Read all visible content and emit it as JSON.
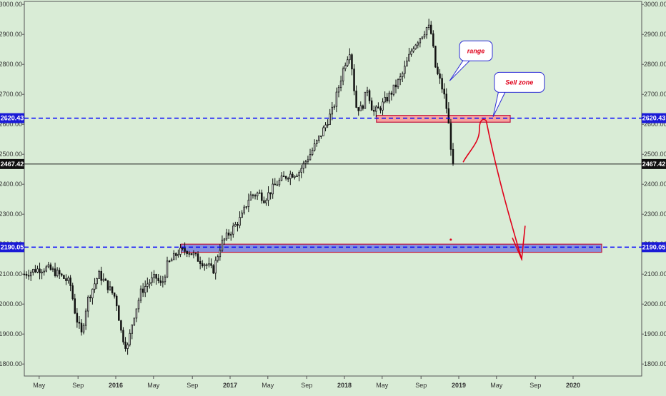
{
  "chart_data": {
    "type": "candlestick",
    "ylim": [
      1760,
      3010
    ],
    "xlim": [
      2015.2,
      2020.6
    ],
    "y_ticks": [
      "1800.00",
      "1900.00",
      "2000.00",
      "2100.00",
      "2200.00",
      "2300.00",
      "2400.00",
      "2500.00",
      "2600.00",
      "2700.00",
      "2800.00",
      "2900.00",
      "3000.00"
    ],
    "x_ticks": [
      {
        "label": "May",
        "x": 2015.33,
        "year": false
      },
      {
        "label": "Sep",
        "x": 2015.67,
        "year": false
      },
      {
        "label": "2016",
        "x": 2016.0,
        "year": true
      },
      {
        "label": "May",
        "x": 2016.33,
        "year": false
      },
      {
        "label": "Sep",
        "x": 2016.67,
        "year": false
      },
      {
        "label": "2017",
        "x": 2017.0,
        "year": true
      },
      {
        "label": "May",
        "x": 2017.33,
        "year": false
      },
      {
        "label": "Sep",
        "x": 2017.67,
        "year": false
      },
      {
        "label": "2018",
        "x": 2018.0,
        "year": true
      },
      {
        "label": "May",
        "x": 2018.33,
        "year": false
      },
      {
        "label": "Sep",
        "x": 2018.67,
        "year": false
      },
      {
        "label": "2019",
        "x": 2019.0,
        "year": true
      },
      {
        "label": "May",
        "x": 2019.33,
        "year": false
      },
      {
        "label": "Sep",
        "x": 2019.67,
        "year": false
      },
      {
        "label": "2020",
        "x": 2020.0,
        "year": true
      }
    ],
    "price_path": [
      [
        2015.2,
        2100
      ],
      [
        2015.3,
        2115
      ],
      [
        2015.4,
        2120
      ],
      [
        2015.5,
        2100
      ],
      [
        2015.6,
        2070
      ],
      [
        2015.65,
        1960
      ],
      [
        2015.7,
        1900
      ],
      [
        2015.75,
        2010
      ],
      [
        2015.85,
        2100
      ],
      [
        2015.93,
        2060
      ],
      [
        2016.0,
        2020
      ],
      [
        2016.05,
        1900
      ],
      [
        2016.1,
        1850
      ],
      [
        2016.15,
        1950
      ],
      [
        2016.22,
        2040
      ],
      [
        2016.28,
        2070
      ],
      [
        2016.35,
        2090
      ],
      [
        2016.4,
        2060
      ],
      [
        2016.45,
        2130
      ],
      [
        2016.55,
        2175
      ],
      [
        2016.63,
        2180
      ],
      [
        2016.72,
        2150
      ],
      [
        2016.8,
        2130
      ],
      [
        2016.85,
        2110
      ],
      [
        2016.92,
        2200
      ],
      [
        2017.0,
        2240
      ],
      [
        2017.1,
        2290
      ],
      [
        2017.17,
        2360
      ],
      [
        2017.25,
        2370
      ],
      [
        2017.3,
        2350
      ],
      [
        2017.4,
        2400
      ],
      [
        2017.5,
        2430
      ],
      [
        2017.6,
        2440
      ],
      [
        2017.7,
        2500
      ],
      [
        2017.8,
        2570
      ],
      [
        2017.9,
        2650
      ],
      [
        2018.0,
        2800
      ],
      [
        2018.05,
        2850
      ],
      [
        2018.1,
        2660
      ],
      [
        2018.15,
        2650
      ],
      [
        2018.2,
        2720
      ],
      [
        2018.25,
        2640
      ],
      [
        2018.3,
        2650
      ],
      [
        2018.4,
        2700
      ],
      [
        2018.5,
        2760
      ],
      [
        2018.55,
        2810
      ],
      [
        2018.6,
        2860
      ],
      [
        2018.7,
        2910
      ],
      [
        2018.73,
        2930
      ],
      [
        2018.76,
        2900
      ],
      [
        2018.8,
        2780
      ],
      [
        2018.84,
        2740
      ],
      [
        2018.87,
        2700
      ],
      [
        2018.9,
        2640
      ],
      [
        2018.93,
        2530
      ],
      [
        2018.95,
        2467.42
      ]
    ],
    "horizontal_levels": [
      {
        "value": 2620.43,
        "label": "2620.43",
        "style": "dashed",
        "color": "#0000ff"
      },
      {
        "value": 2190.05,
        "label": "2190.05",
        "style": "dashed",
        "color": "#0000ff"
      },
      {
        "value": 2467.42,
        "label": "2467.42",
        "style": "solid",
        "color": "#222222"
      }
    ],
    "zones": [
      {
        "name": "sell-zone",
        "x_start": 2018.28,
        "x_end": 2019.45,
        "y_low": 2607,
        "y_high": 2630,
        "fill": "#ff8a8a"
      },
      {
        "name": "support-zone",
        "x_start": 2016.57,
        "x_end": 2020.25,
        "y_low": 2173,
        "y_high": 2200,
        "fill": "#6a72e0"
      }
    ],
    "callouts": [
      {
        "text": "range",
        "box_x": 2019.15,
        "box_y": 2845,
        "anchor_x": 2018.92,
        "anchor_y": 2745
      },
      {
        "text": "Sell zone",
        "box_x": 2019.53,
        "box_y": 2740,
        "anchor_x": 2019.3,
        "anchor_y": 2625
      }
    ],
    "drawing_color": "#e0001a"
  }
}
